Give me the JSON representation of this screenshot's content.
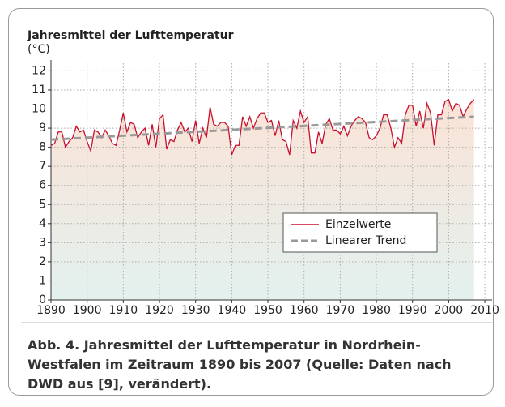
{
  "chart_data": {
    "type": "line",
    "title": "Jahresmittel der Lufttemperatur",
    "y_label": "(°C)",
    "caption": "Abb. 4. Jahresmittel der Lufttemperatur in Nordrhein-Westfalen im Zeitraum 1890 bis 2007 (Quelle: Daten nach DWD aus [9], verändert).",
    "xlim": [
      1890,
      2012
    ],
    "ylim": [
      0,
      12.4
    ],
    "xticks": [
      1890,
      1900,
      1910,
      1920,
      1930,
      1940,
      1950,
      1960,
      1970,
      1980,
      1990,
      2000,
      2010
    ],
    "yticks": [
      0,
      1,
      2,
      3,
      4,
      5,
      6,
      7,
      8,
      9,
      10,
      11,
      12
    ],
    "grid": true,
    "series": [
      {
        "name": "Einzelwerte",
        "color": "#c8102e",
        "x": [
          1890,
          1891,
          1892,
          1893,
          1894,
          1895,
          1896,
          1897,
          1898,
          1899,
          1900,
          1901,
          1902,
          1903,
          1904,
          1905,
          1906,
          1907,
          1908,
          1909,
          1910,
          1911,
          1912,
          1913,
          1914,
          1915,
          1916,
          1917,
          1918,
          1919,
          1920,
          1921,
          1922,
          1923,
          1924,
          1925,
          1926,
          1927,
          1928,
          1929,
          1930,
          1931,
          1932,
          1933,
          1934,
          1935,
          1936,
          1937,
          1938,
          1939,
          1940,
          1941,
          1942,
          1943,
          1944,
          1945,
          1946,
          1947,
          1948,
          1949,
          1950,
          1951,
          1952,
          1953,
          1954,
          1955,
          1956,
          1957,
          1958,
          1959,
          1960,
          1961,
          1962,
          1963,
          1964,
          1965,
          1966,
          1967,
          1968,
          1969,
          1970,
          1971,
          1972,
          1973,
          1974,
          1975,
          1976,
          1977,
          1978,
          1979,
          1980,
          1981,
          1982,
          1983,
          1984,
          1985,
          1986,
          1987,
          1988,
          1989,
          1990,
          1991,
          1992,
          1993,
          1994,
          1995,
          1996,
          1997,
          1998,
          1999,
          2000,
          2001,
          2002,
          2003,
          2004,
          2005,
          2006,
          2007
        ],
        "values": [
          8.1,
          8.2,
          8.8,
          8.8,
          8.0,
          8.3,
          8.5,
          9.1,
          8.8,
          8.9,
          8.3,
          7.8,
          8.9,
          8.8,
          8.5,
          8.9,
          8.6,
          8.2,
          8.1,
          8.9,
          9.8,
          8.8,
          9.3,
          9.2,
          8.5,
          8.8,
          9.0,
          8.1,
          9.2,
          8.0,
          9.5,
          9.7,
          7.9,
          8.4,
          8.3,
          8.9,
          9.3,
          8.8,
          9.0,
          8.3,
          9.4,
          8.2,
          9.0,
          8.5,
          10.1,
          9.2,
          9.1,
          9.3,
          9.3,
          9.1,
          7.6,
          8.1,
          8.1,
          9.6,
          9.1,
          9.6,
          9.0,
          9.5,
          9.8,
          9.8,
          9.3,
          9.4,
          8.6,
          9.4,
          8.4,
          8.3,
          7.6,
          9.4,
          9.0,
          9.9,
          9.3,
          9.6,
          7.7,
          7.7,
          8.8,
          8.2,
          9.2,
          9.5,
          8.9,
          8.9,
          8.7,
          9.1,
          8.6,
          9.1,
          9.4,
          9.6,
          9.5,
          9.3,
          8.5,
          8.4,
          8.6,
          9.0,
          9.7,
          9.7,
          9.0,
          8.0,
          8.5,
          8.2,
          9.7,
          10.2,
          10.2,
          9.1,
          9.9,
          9.0,
          10.3,
          9.8,
          8.1,
          9.7,
          9.7,
          10.4,
          10.5,
          9.9,
          10.3,
          10.2,
          9.6,
          10.0,
          10.3,
          10.5
        ]
      },
      {
        "name": "Linearer Trend",
        "color": "#999999",
        "dashed": true,
        "x": [
          1890,
          2007
        ],
        "values": [
          8.4,
          9.6
        ]
      }
    ]
  }
}
